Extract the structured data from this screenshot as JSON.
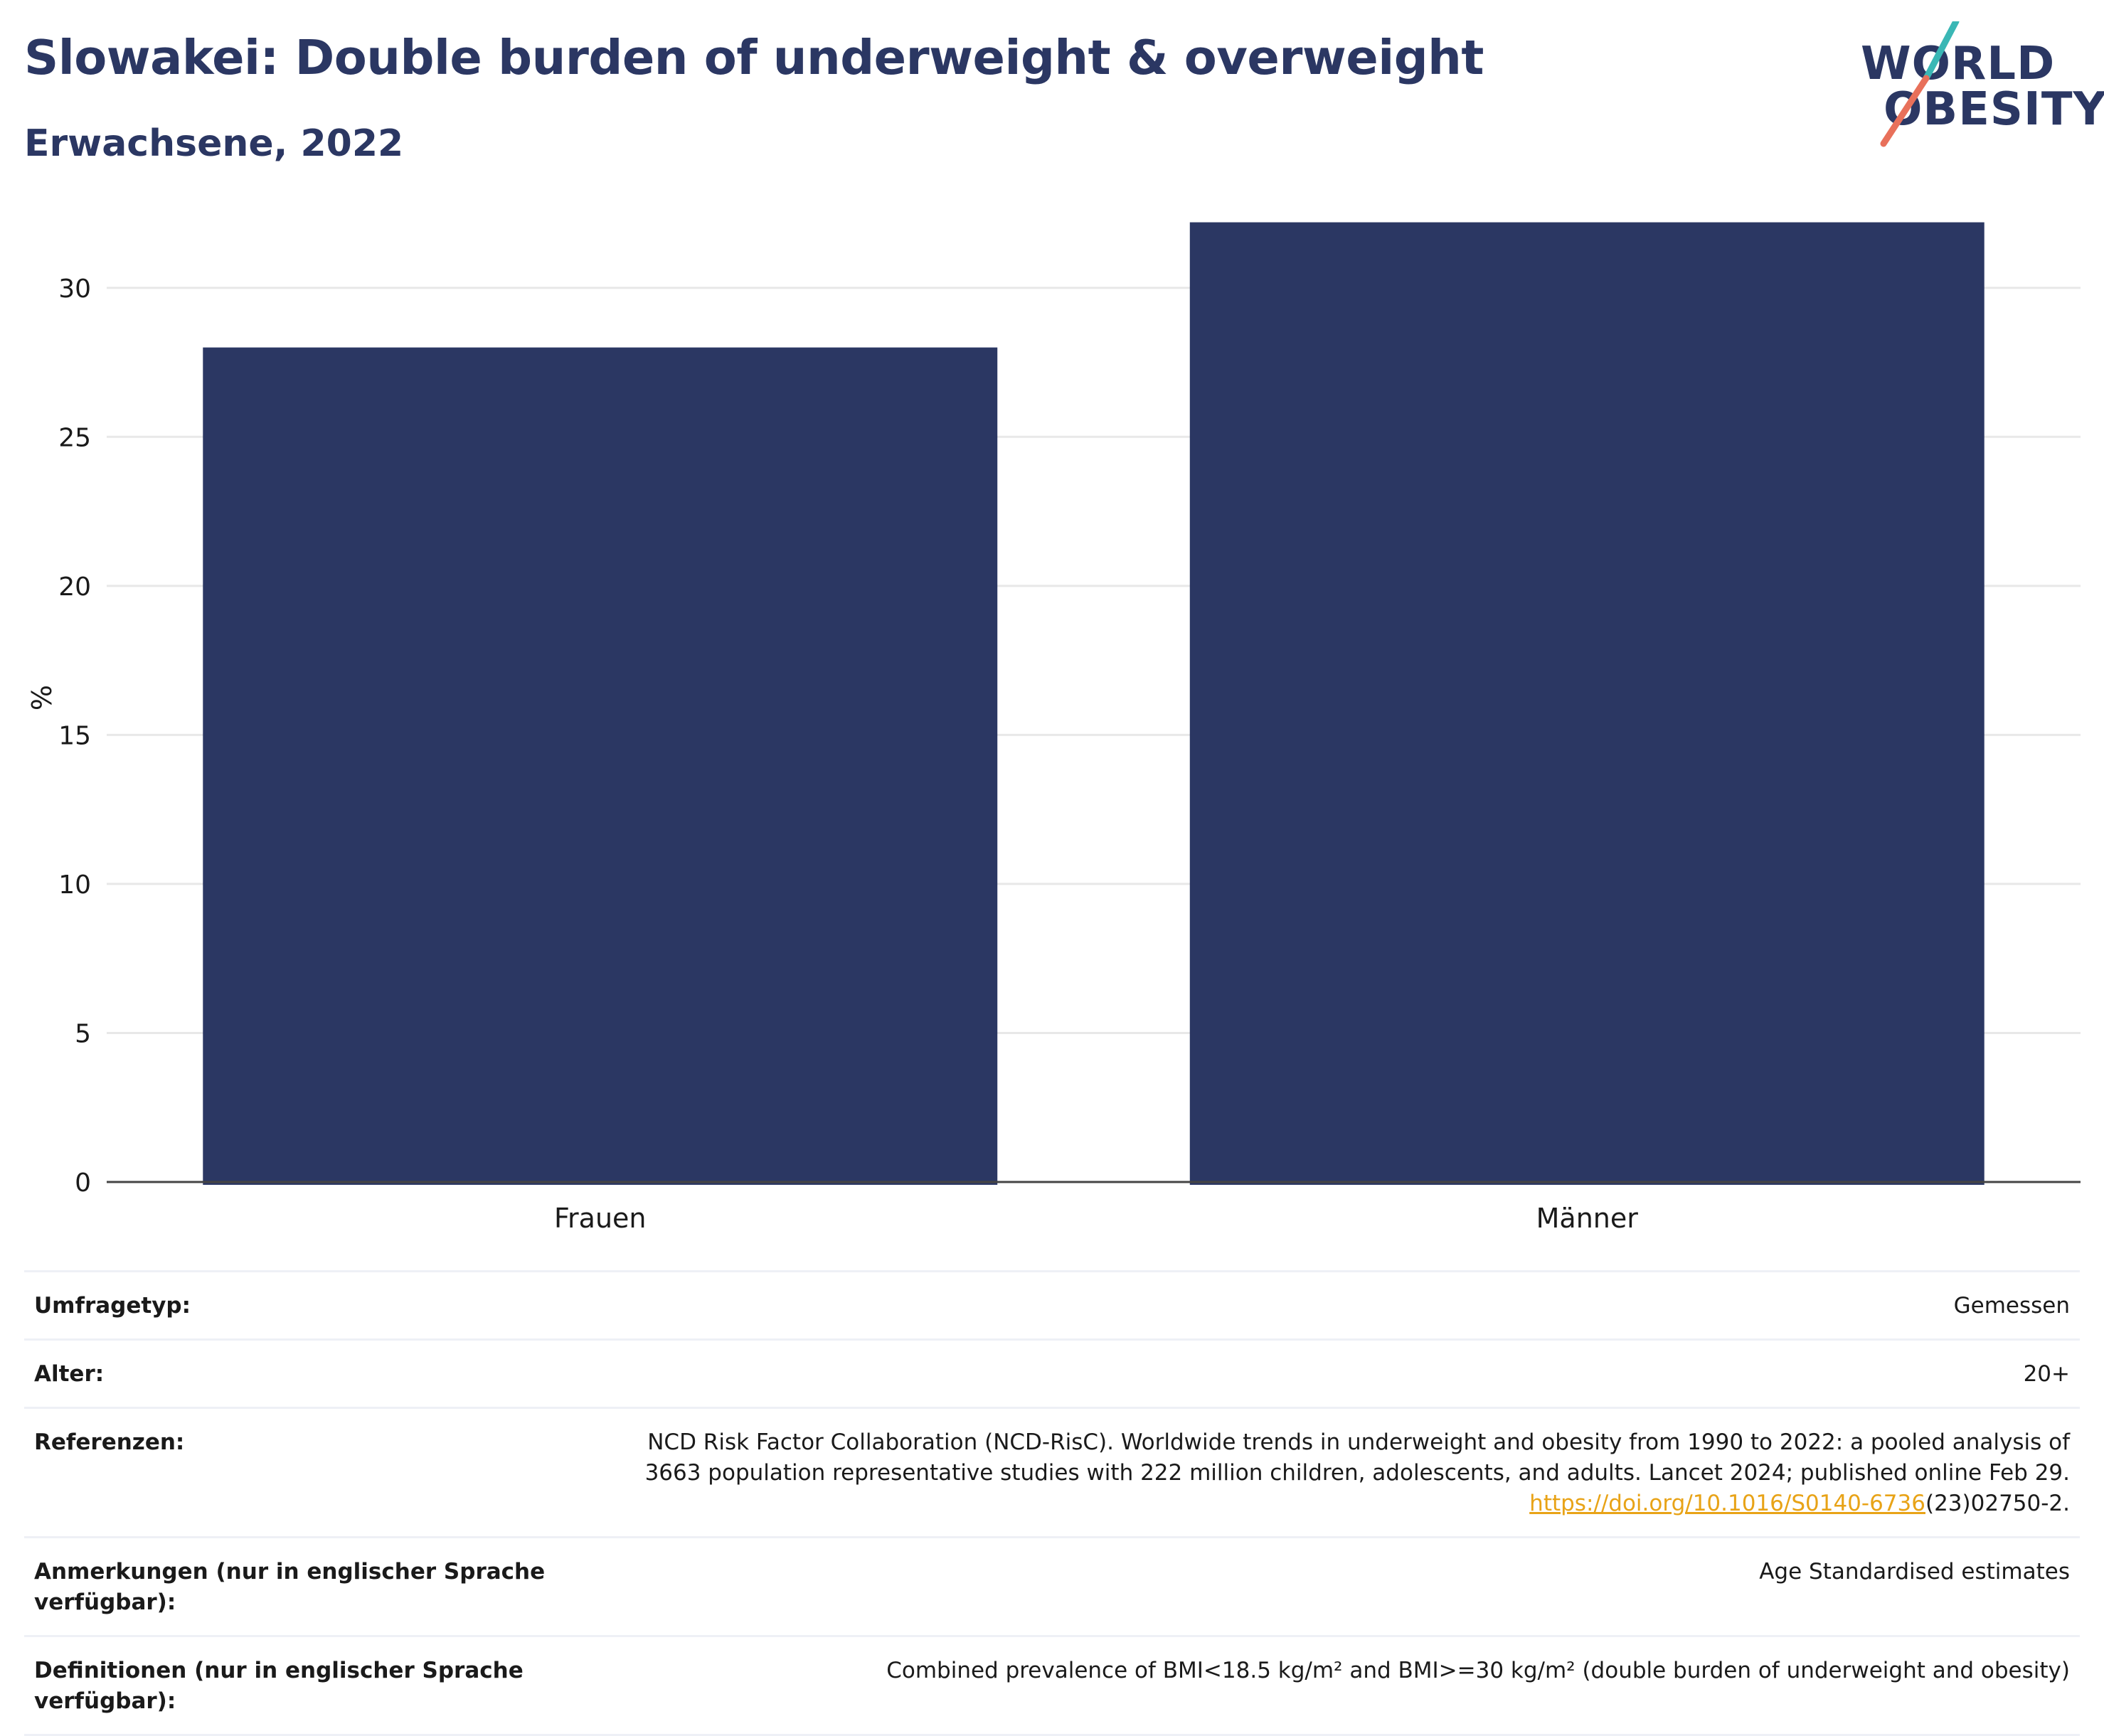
{
  "header": {
    "title": "Slowakei: Double burden of underweight & overweight",
    "subtitle": "Erwachsene, 2022"
  },
  "logo": {
    "line1": "WORLD",
    "line2": "OBESITY",
    "colors": {
      "text": "#2b3763",
      "slash_top": "#3ab7b5",
      "slash_bottom": "#e8705a"
    }
  },
  "chart_data": {
    "type": "bar",
    "categories": [
      "Frauen",
      "Männer"
    ],
    "values": [
      28.0,
      32.2
    ],
    "ylabel": "%",
    "xlabel": "",
    "ylim": [
      0,
      32.5
    ],
    "yticks": [
      0,
      5,
      10,
      15,
      20,
      25,
      30
    ],
    "grid": true,
    "bar_color": "#2b3763"
  },
  "meta": [
    {
      "key": "Umfragetyp:",
      "value": "Gemessen"
    },
    {
      "key": "Alter:",
      "value": "20+"
    },
    {
      "key": "Referenzen:",
      "value_lines": [
        "NCD Risk Factor Collaboration (NCD-RisC). Worldwide trends in underweight and obesity from 1990 to 2022: a pooled analysis of",
        "3663 population representative studies with 222 million children, adolescents, and adults. Lancet 2024; published online Feb 29."
      ],
      "link": "https://doi.org/10.1016/S0140-6736",
      "link_suffix": "(23)02750-2."
    },
    {
      "key": "Anmerkungen (nur in englischer Sprache verfügbar):",
      "value": "Age Standardised estimates"
    },
    {
      "key": "Definitionen (nur in englischer Sprache verfügbar):",
      "value": "Combined prevalence of BMI<18.5 kg/m² and BMI>=30 kg/m² (double burden of underweight and obesity)"
    }
  ]
}
